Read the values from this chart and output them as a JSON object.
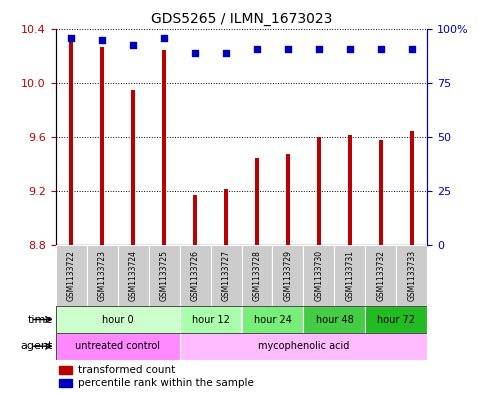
{
  "title": "GDS5265 / ILMN_1673023",
  "samples": [
    "GSM1133722",
    "GSM1133723",
    "GSM1133724",
    "GSM1133725",
    "GSM1133726",
    "GSM1133727",
    "GSM1133728",
    "GSM1133729",
    "GSM1133730",
    "GSM1133731",
    "GSM1133732",
    "GSM1133733"
  ],
  "bar_values": [
    10.33,
    10.27,
    9.95,
    10.25,
    9.17,
    9.22,
    9.45,
    9.48,
    9.6,
    9.62,
    9.58,
    9.65
  ],
  "percentile_values": [
    96,
    95,
    93,
    96,
    89,
    89,
    91,
    91,
    91,
    91,
    91,
    91
  ],
  "ylim_left": [
    8.8,
    10.4
  ],
  "ylim_right": [
    0,
    100
  ],
  "yticks_left": [
    8.8,
    9.2,
    9.6,
    10.0,
    10.4
  ],
  "yticks_right": [
    0,
    25,
    50,
    75,
    100
  ],
  "bar_color": "#bb0000",
  "dot_color": "#0000bb",
  "time_groups": [
    {
      "label": "hour 0",
      "start": 0,
      "end": 4,
      "color": "#ccffcc"
    },
    {
      "label": "hour 12",
      "start": 4,
      "end": 6,
      "color": "#aaffaa"
    },
    {
      "label": "hour 24",
      "start": 6,
      "end": 8,
      "color": "#77ee77"
    },
    {
      "label": "hour 48",
      "start": 8,
      "end": 10,
      "color": "#44cc44"
    },
    {
      "label": "hour 72",
      "start": 10,
      "end": 12,
      "color": "#22bb22"
    }
  ],
  "agent_groups": [
    {
      "label": "untreated control",
      "start": 0,
      "end": 4,
      "color": "#ff88ff"
    },
    {
      "label": "mycophenolic acid",
      "start": 4,
      "end": 12,
      "color": "#ffbbff"
    }
  ],
  "legend_items": [
    {
      "label": "transformed count",
      "color": "#bb0000"
    },
    {
      "label": "percentile rank within the sample",
      "color": "#0000bb"
    }
  ],
  "bar_width": 0.15,
  "dot_size": 18
}
